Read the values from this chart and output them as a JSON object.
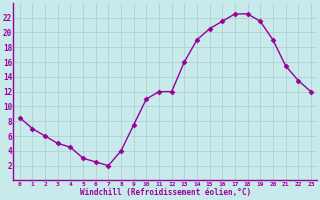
{
  "x": [
    0,
    1,
    2,
    3,
    4,
    5,
    6,
    7,
    8,
    9,
    10,
    11,
    12,
    13,
    14,
    15,
    16,
    17,
    18,
    19,
    20,
    21,
    22,
    23
  ],
  "y": [
    8.5,
    7,
    6,
    5,
    4.5,
    3,
    2.5,
    2,
    4,
    7.5,
    11,
    12,
    12,
    16,
    19,
    20.5,
    21.5,
    22.5,
    22.5,
    21.5,
    19,
    15.5,
    13.5,
    12
  ],
  "line_color": "#990099",
  "marker": "D",
  "marker_size": 2.5,
  "bg_color": "#c8eaea",
  "grid_color": "#aacccc",
  "xlabel": "Windchill (Refroidissement éolien,°C)",
  "xlabel_color": "#990099",
  "tick_color": "#990099",
  "spine_color": "#990099",
  "ylim": [
    0,
    24
  ],
  "xlim": [
    -0.5,
    23.5
  ],
  "yticks": [
    2,
    4,
    6,
    8,
    10,
    12,
    14,
    16,
    18,
    20,
    22
  ],
  "xticks": [
    0,
    1,
    2,
    3,
    4,
    5,
    6,
    7,
    8,
    9,
    10,
    11,
    12,
    13,
    14,
    15,
    16,
    17,
    18,
    19,
    20,
    21,
    22,
    23
  ]
}
